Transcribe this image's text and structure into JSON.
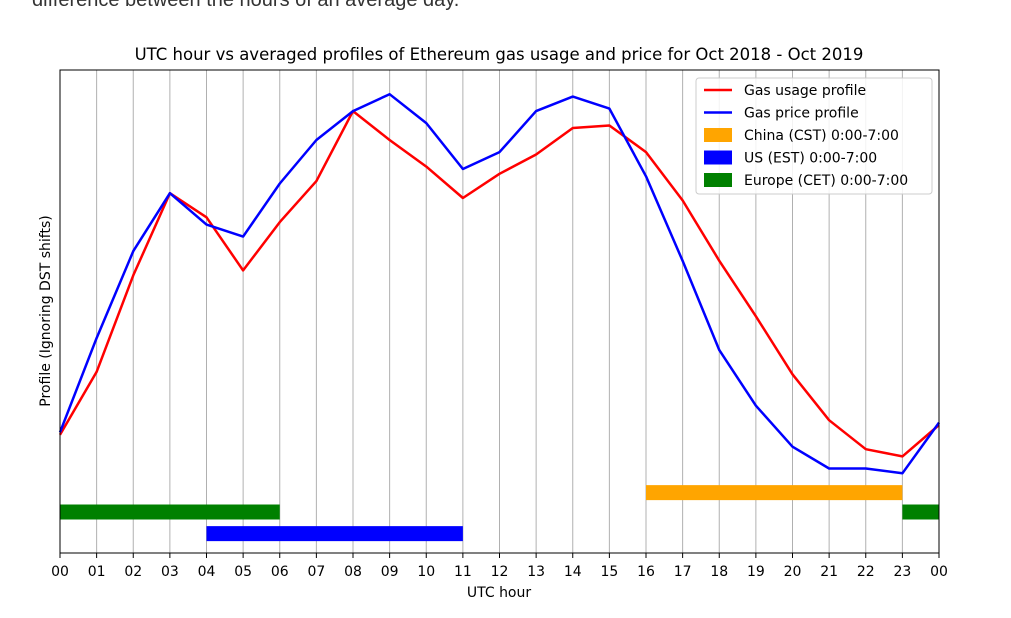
{
  "page": {
    "caption_fragment": "difference between the hours of an average day."
  },
  "chart_data": {
    "type": "line",
    "title": "UTC hour vs averaged profiles of Ethereum gas usage and price for Oct 2018 - Oct 2019",
    "xlabel": "UTC hour",
    "ylabel": "Profile (Ignoring DST shifts)",
    "x_tick_labels": [
      "00",
      "01",
      "02",
      "03",
      "04",
      "05",
      "06",
      "07",
      "08",
      "09",
      "10",
      "11",
      "12",
      "13",
      "14",
      "15",
      "16",
      "17",
      "18",
      "19",
      "20",
      "21",
      "22",
      "23",
      "00"
    ],
    "xlim": [
      0,
      24
    ],
    "ylim": [
      0,
      1
    ],
    "y_ticks_shown": false,
    "grid": "vertical lines at every hour",
    "legend_position": "top-right",
    "x": [
      0,
      1,
      2,
      3,
      4,
      5,
      6,
      7,
      8,
      9,
      10,
      11,
      12,
      13,
      14,
      15,
      16,
      17,
      18,
      19,
      20,
      21,
      22,
      23,
      24
    ],
    "series": [
      {
        "name": "Gas usage profile",
        "color": "#ff0000",
        "values": [
          0.245,
          0.375,
          0.575,
          0.745,
          0.695,
          0.585,
          0.685,
          0.77,
          0.915,
          0.855,
          0.8,
          0.735,
          0.785,
          0.825,
          0.88,
          0.885,
          0.83,
          0.73,
          0.605,
          0.49,
          0.37,
          0.275,
          0.215,
          0.2,
          0.265
        ]
      },
      {
        "name": "Gas price profile",
        "color": "#0000ff",
        "values": [
          0.25,
          0.445,
          0.625,
          0.745,
          0.68,
          0.655,
          0.765,
          0.855,
          0.915,
          0.95,
          0.89,
          0.795,
          0.83,
          0.915,
          0.945,
          0.92,
          0.78,
          0.605,
          0.42,
          0.305,
          0.22,
          0.175,
          0.175,
          0.165,
          0.27
        ]
      }
    ],
    "ranges": [
      {
        "name": "China (CST) 0:00-7:00",
        "color": "#ffa500",
        "start": 16,
        "end": 23,
        "level": 0.125
      },
      {
        "name": "US (EST) 0:00-7:00",
        "color": "#0000ff",
        "start": 4,
        "end": 11,
        "level": 0.04
      },
      {
        "name": "Europe (CET) 0:00-7:00",
        "color": "#008000",
        "start": 0,
        "end": 6,
        "level": 0.085
      },
      {
        "name": "",
        "color": "#008000",
        "start": 23,
        "end": 24,
        "level": 0.085
      }
    ]
  }
}
